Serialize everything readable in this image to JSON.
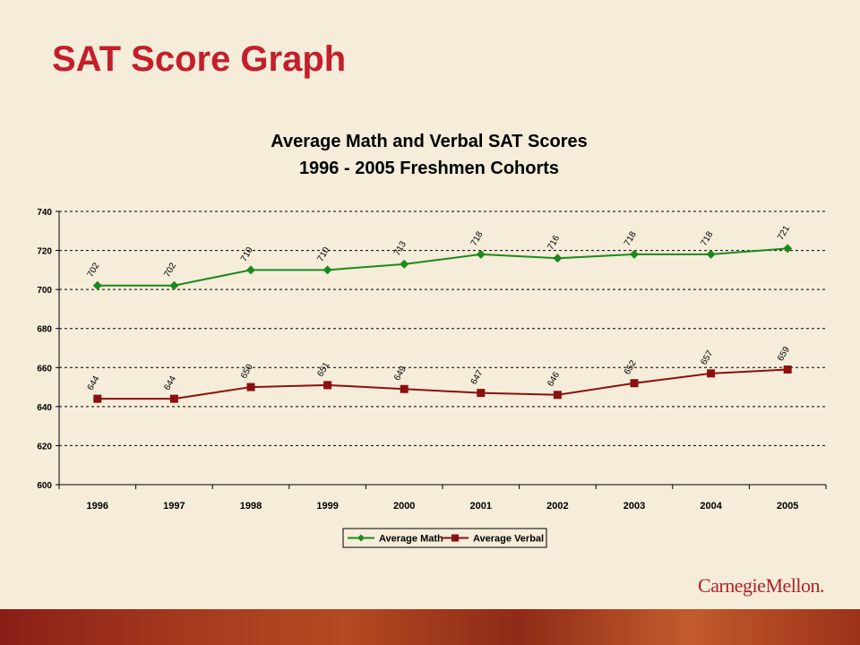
{
  "slide": {
    "title": "SAT Score Graph",
    "logo": "CarnegieMellon."
  },
  "colors": {
    "title": "#c41e2b",
    "math": "#1a8a1a",
    "verbal": "#8b1010",
    "background": "#f5ecd9"
  },
  "chart_data": {
    "type": "line",
    "title": [
      "Average Math and Verbal SAT Scores",
      "1996 - 2005 Freshmen Cohorts"
    ],
    "xlabel": "",
    "ylabel": "",
    "categories": [
      "1996",
      "1997",
      "1998",
      "1999",
      "2000",
      "2001",
      "2002",
      "2003",
      "2004",
      "2005"
    ],
    "ylim": [
      600,
      740
    ],
    "yticks": [
      "600",
      "620",
      "640",
      "660",
      "680",
      "700",
      "720",
      "740"
    ],
    "grid": "horizontal-dashed",
    "legend_position": "bottom-center",
    "series": [
      {
        "name": "Average Math",
        "marker": "diamond",
        "values": [
          702,
          702,
          710,
          710,
          713,
          718,
          716,
          718,
          718,
          721
        ],
        "labels": [
          "702",
          "702",
          "710",
          "710",
          "713",
          "718",
          "716",
          "718",
          "718",
          "721"
        ]
      },
      {
        "name": "Average Verbal",
        "marker": "square",
        "values": [
          644,
          644,
          650,
          651,
          649,
          647,
          646,
          652,
          657,
          659
        ],
        "labels": [
          "644",
          "644",
          "650",
          "651",
          "649",
          "647",
          "646",
          "652",
          "657",
          "659"
        ]
      }
    ]
  }
}
